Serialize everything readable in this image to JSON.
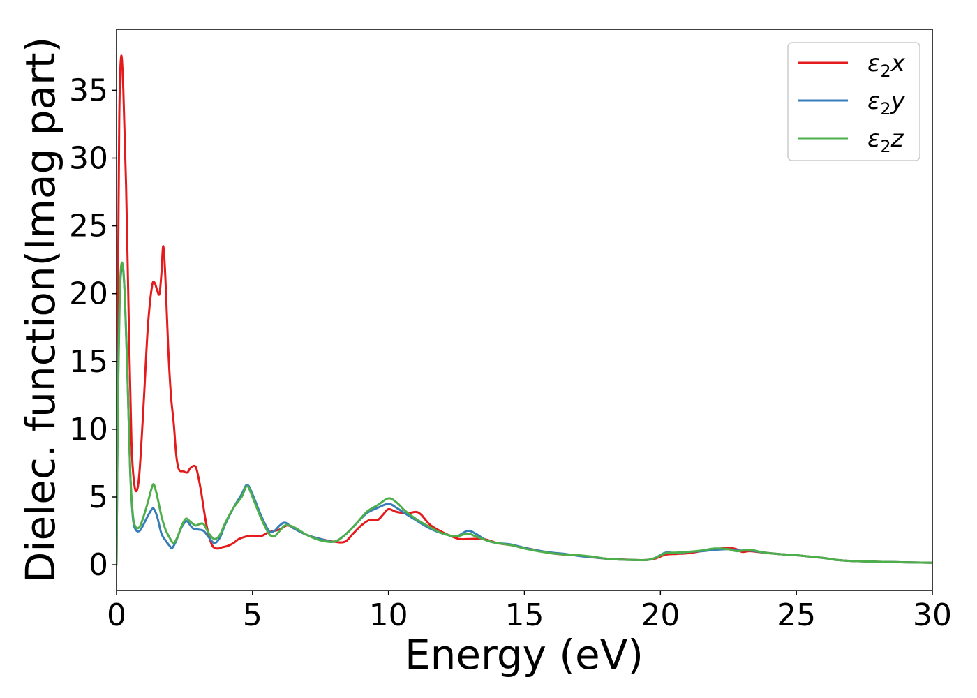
{
  "chart_data": {
    "type": "line",
    "xlabel": "Energy (eV)",
    "ylabel": "Dielec. function(Imag part)",
    "xlim": [
      0,
      30
    ],
    "ylim": [
      -1.9,
      39.5
    ],
    "xticks": [
      0,
      5,
      10,
      15,
      20,
      25,
      30
    ],
    "yticks": [
      0,
      5,
      10,
      15,
      20,
      25,
      30,
      35
    ],
    "grid": false,
    "legend_position": "top-right",
    "series": [
      {
        "name": "ε2x",
        "legend_base": "ε",
        "legend_sub": "2",
        "legend_suffix": "x",
        "color": "#e41a1c",
        "points": [
          [
            0,
            0
          ],
          [
            0.05,
            20
          ],
          [
            0.1,
            33
          ],
          [
            0.17,
            37.5
          ],
          [
            0.25,
            35
          ],
          [
            0.35,
            28
          ],
          [
            0.45,
            18
          ],
          [
            0.55,
            9
          ],
          [
            0.65,
            6
          ],
          [
            0.75,
            5.5
          ],
          [
            0.85,
            7
          ],
          [
            1.0,
            12
          ],
          [
            1.15,
            17.5
          ],
          [
            1.3,
            20.5
          ],
          [
            1.4,
            20.8
          ],
          [
            1.5,
            20.2
          ],
          [
            1.58,
            20
          ],
          [
            1.65,
            21.5
          ],
          [
            1.72,
            23.5
          ],
          [
            1.8,
            21
          ],
          [
            1.9,
            16
          ],
          [
            2.0,
            12.5
          ],
          [
            2.1,
            10.5
          ],
          [
            2.2,
            8
          ],
          [
            2.3,
            7
          ],
          [
            2.45,
            6.9
          ],
          [
            2.6,
            6.8
          ],
          [
            2.7,
            7.1
          ],
          [
            2.85,
            7.3
          ],
          [
            2.95,
            7
          ],
          [
            3.1,
            5.5
          ],
          [
            3.3,
            3
          ],
          [
            3.5,
            1.5
          ],
          [
            3.7,
            1.2
          ],
          [
            3.9,
            1.3
          ],
          [
            4.1,
            1.4
          ],
          [
            4.3,
            1.6
          ],
          [
            4.5,
            1.9
          ],
          [
            4.8,
            2.1
          ],
          [
            5.0,
            2.15
          ],
          [
            5.3,
            2.1
          ],
          [
            5.6,
            2.4
          ],
          [
            6.0,
            2.6
          ],
          [
            6.3,
            2.9
          ],
          [
            6.7,
            2.5
          ],
          [
            7.0,
            2.2
          ],
          [
            7.5,
            1.9
          ],
          [
            8.0,
            1.7
          ],
          [
            8.4,
            1.7
          ],
          [
            8.7,
            2.3
          ],
          [
            9.0,
            2.9
          ],
          [
            9.3,
            3.3
          ],
          [
            9.6,
            3.3
          ],
          [
            9.8,
            3.7
          ],
          [
            10.0,
            4.1
          ],
          [
            10.3,
            3.9
          ],
          [
            10.7,
            3.8
          ],
          [
            11.0,
            3.9
          ],
          [
            11.2,
            3.7
          ],
          [
            11.5,
            3.0
          ],
          [
            11.8,
            2.6
          ],
          [
            12.2,
            2.2
          ],
          [
            12.6,
            1.9
          ],
          [
            13.0,
            1.9
          ],
          [
            13.5,
            1.9
          ],
          [
            14.0,
            1.6
          ],
          [
            14.5,
            1.45
          ],
          [
            15,
            1.25
          ],
          [
            15.5,
            1.05
          ],
          [
            16,
            0.85
          ],
          [
            16.5,
            0.75
          ],
          [
            17,
            0.7
          ],
          [
            17.5,
            0.55
          ],
          [
            18,
            0.45
          ],
          [
            18.5,
            0.4
          ],
          [
            19,
            0.35
          ],
          [
            19.5,
            0.35
          ],
          [
            19.8,
            0.45
          ],
          [
            20.2,
            0.75
          ],
          [
            20.6,
            0.8
          ],
          [
            21.0,
            0.85
          ],
          [
            21.5,
            1.0
          ],
          [
            22.0,
            1.15
          ],
          [
            22.5,
            1.25
          ],
          [
            22.8,
            1.15
          ],
          [
            23.0,
            0.95
          ],
          [
            23.3,
            1.0
          ],
          [
            23.8,
            0.9
          ],
          [
            24.3,
            0.8
          ],
          [
            25.0,
            0.7
          ],
          [
            25.5,
            0.6
          ],
          [
            26.0,
            0.5
          ],
          [
            26.5,
            0.35
          ],
          [
            27.0,
            0.28
          ],
          [
            28.0,
            0.22
          ],
          [
            29.0,
            0.18
          ],
          [
            30.0,
            0.15
          ]
        ]
      },
      {
        "name": "ε2y",
        "legend_base": "ε",
        "legend_sub": "2",
        "legend_suffix": "y",
        "color": "#377eb8",
        "points": [
          [
            0,
            0
          ],
          [
            0.05,
            12
          ],
          [
            0.12,
            20
          ],
          [
            0.22,
            22
          ],
          [
            0.3,
            20
          ],
          [
            0.4,
            14
          ],
          [
            0.5,
            7
          ],
          [
            0.6,
            3.5
          ],
          [
            0.7,
            2.6
          ],
          [
            0.85,
            2.5
          ],
          [
            1.0,
            3.0
          ],
          [
            1.15,
            3.6
          ],
          [
            1.3,
            4.1
          ],
          [
            1.38,
            4.1
          ],
          [
            1.5,
            3.5
          ],
          [
            1.65,
            2.3
          ],
          [
            1.8,
            1.8
          ],
          [
            1.95,
            1.4
          ],
          [
            2.05,
            1.25
          ],
          [
            2.2,
            1.8
          ],
          [
            2.35,
            2.6
          ],
          [
            2.5,
            3.1
          ],
          [
            2.6,
            3.2
          ],
          [
            2.8,
            2.7
          ],
          [
            3.0,
            2.6
          ],
          [
            3.2,
            2.5
          ],
          [
            3.4,
            2.0
          ],
          [
            3.6,
            1.6
          ],
          [
            3.8,
            2.0
          ],
          [
            4.0,
            3.0
          ],
          [
            4.3,
            4.2
          ],
          [
            4.6,
            5.2
          ],
          [
            4.8,
            5.9
          ],
          [
            5.0,
            5.2
          ],
          [
            5.3,
            3.7
          ],
          [
            5.6,
            2.5
          ],
          [
            5.8,
            2.5
          ],
          [
            6.0,
            2.9
          ],
          [
            6.2,
            3.1
          ],
          [
            6.5,
            2.7
          ],
          [
            7.0,
            2.2
          ],
          [
            7.5,
            1.9
          ],
          [
            8.0,
            1.7
          ],
          [
            8.4,
            2.2
          ],
          [
            8.8,
            3.0
          ],
          [
            9.2,
            3.8
          ],
          [
            9.6,
            4.2
          ],
          [
            10.0,
            4.5
          ],
          [
            10.3,
            4.2
          ],
          [
            10.6,
            3.8
          ],
          [
            11.0,
            3.3
          ],
          [
            11.5,
            2.7
          ],
          [
            12.0,
            2.3
          ],
          [
            12.5,
            2.1
          ],
          [
            12.9,
            2.5
          ],
          [
            13.2,
            2.3
          ],
          [
            13.6,
            1.8
          ],
          [
            14.0,
            1.6
          ],
          [
            14.5,
            1.5
          ],
          [
            15,
            1.25
          ],
          [
            15.5,
            1.05
          ],
          [
            16,
            0.9
          ],
          [
            16.5,
            0.8
          ],
          [
            17,
            0.65
          ],
          [
            17.5,
            0.55
          ],
          [
            18,
            0.45
          ],
          [
            18.5,
            0.38
          ],
          [
            19,
            0.35
          ],
          [
            19.5,
            0.35
          ],
          [
            19.8,
            0.5
          ],
          [
            20.2,
            0.9
          ],
          [
            20.6,
            0.85
          ],
          [
            21.0,
            0.95
          ],
          [
            21.5,
            1.0
          ],
          [
            22.0,
            1.1
          ],
          [
            22.5,
            1.15
          ],
          [
            22.8,
            1.05
          ],
          [
            23.3,
            1.05
          ],
          [
            23.8,
            0.9
          ],
          [
            24.3,
            0.8
          ],
          [
            25.0,
            0.7
          ],
          [
            25.5,
            0.6
          ],
          [
            26.0,
            0.5
          ],
          [
            26.5,
            0.35
          ],
          [
            27.0,
            0.28
          ],
          [
            28.0,
            0.22
          ],
          [
            29.0,
            0.18
          ],
          [
            30.0,
            0.15
          ]
        ]
      },
      {
        "name": "ε2z",
        "legend_base": "ε",
        "legend_sub": "2",
        "legend_suffix": "z",
        "color": "#4daf4a",
        "points": [
          [
            0,
            0
          ],
          [
            0.05,
            12
          ],
          [
            0.12,
            20
          ],
          [
            0.2,
            22.3
          ],
          [
            0.3,
            20
          ],
          [
            0.4,
            14
          ],
          [
            0.5,
            7
          ],
          [
            0.6,
            3.7
          ],
          [
            0.7,
            2.8
          ],
          [
            0.85,
            2.8
          ],
          [
            1.0,
            3.6
          ],
          [
            1.15,
            4.6
          ],
          [
            1.3,
            5.7
          ],
          [
            1.38,
            5.9
          ],
          [
            1.5,
            5.0
          ],
          [
            1.65,
            3.6
          ],
          [
            1.8,
            2.6
          ],
          [
            1.95,
            2.0
          ],
          [
            2.1,
            1.6
          ],
          [
            2.25,
            2.1
          ],
          [
            2.4,
            2.9
          ],
          [
            2.55,
            3.4
          ],
          [
            2.7,
            3.2
          ],
          [
            2.9,
            2.9
          ],
          [
            3.05,
            3.0
          ],
          [
            3.2,
            3.0
          ],
          [
            3.4,
            2.3
          ],
          [
            3.6,
            1.9
          ],
          [
            3.8,
            2.2
          ],
          [
            4.0,
            3.1
          ],
          [
            4.3,
            4.2
          ],
          [
            4.6,
            5.0
          ],
          [
            4.8,
            5.8
          ],
          [
            5.0,
            5.0
          ],
          [
            5.3,
            3.5
          ],
          [
            5.6,
            2.3
          ],
          [
            5.8,
            2.1
          ],
          [
            6.0,
            2.5
          ],
          [
            6.2,
            2.9
          ],
          [
            6.5,
            2.8
          ],
          [
            7.0,
            2.2
          ],
          [
            7.5,
            1.8
          ],
          [
            8.0,
            1.7
          ],
          [
            8.4,
            2.2
          ],
          [
            8.8,
            3.0
          ],
          [
            9.2,
            3.9
          ],
          [
            9.6,
            4.4
          ],
          [
            10.0,
            4.9
          ],
          [
            10.3,
            4.6
          ],
          [
            10.6,
            4.0
          ],
          [
            11.0,
            3.4
          ],
          [
            11.5,
            2.8
          ],
          [
            12.0,
            2.3
          ],
          [
            12.5,
            2.1
          ],
          [
            12.9,
            2.3
          ],
          [
            13.2,
            2.1
          ],
          [
            13.6,
            1.8
          ],
          [
            14.0,
            1.6
          ],
          [
            14.5,
            1.45
          ],
          [
            15,
            1.2
          ],
          [
            15.5,
            1.0
          ],
          [
            16,
            0.85
          ],
          [
            16.5,
            0.75
          ],
          [
            17,
            0.7
          ],
          [
            17.5,
            0.6
          ],
          [
            18,
            0.45
          ],
          [
            18.5,
            0.38
          ],
          [
            19,
            0.35
          ],
          [
            19.5,
            0.35
          ],
          [
            19.8,
            0.5
          ],
          [
            20.2,
            0.85
          ],
          [
            20.6,
            0.9
          ],
          [
            21.0,
            0.95
          ],
          [
            21.5,
            1.05
          ],
          [
            22.0,
            1.2
          ],
          [
            22.5,
            1.15
          ],
          [
            22.8,
            1.0
          ],
          [
            23.3,
            1.1
          ],
          [
            23.8,
            0.9
          ],
          [
            24.3,
            0.8
          ],
          [
            25.0,
            0.7
          ],
          [
            25.5,
            0.6
          ],
          [
            26.0,
            0.5
          ],
          [
            26.5,
            0.35
          ],
          [
            27.0,
            0.28
          ],
          [
            28.0,
            0.22
          ],
          [
            29.0,
            0.18
          ],
          [
            30.0,
            0.15
          ]
        ]
      }
    ]
  }
}
